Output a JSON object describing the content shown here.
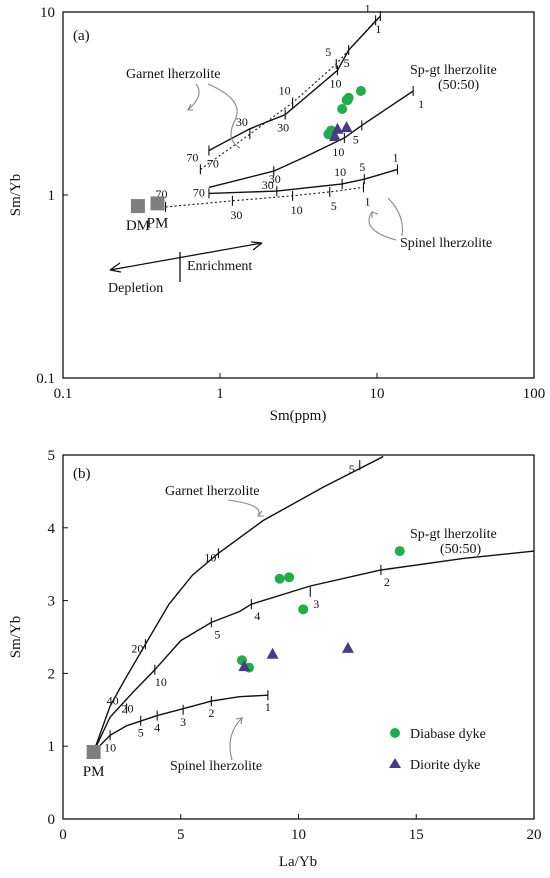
{
  "chart_data": [
    {
      "type": "line",
      "panel_label": "(a)",
      "x_scale": "log",
      "y_scale": "log",
      "xlabel": "Sm(ppm)",
      "ylabel": "Sm/Yb",
      "xlim": [
        0.1,
        100
      ],
      "ylim": [
        0.1,
        10
      ],
      "x_ticks": [
        "0.1",
        "1",
        "10",
        "100"
      ],
      "y_ticks": [
        "0.1",
        "1",
        "10"
      ],
      "curves": [
        {
          "name": "Garnet lherzolite (PM source)",
          "style": "dotted",
          "points": [
            [
              0.75,
              1.38
            ],
            [
              1.55,
              2.15
            ],
            [
              2.9,
              3.2
            ],
            [
              5.5,
              5.2
            ],
            [
              9.8,
              9.0
            ]
          ],
          "ticks": [
            {
              "x": 0.75,
              "y": 1.38,
              "label": "70"
            },
            {
              "x": 1.55,
              "y": 2.15,
              "label": "30"
            },
            {
              "x": 2.9,
              "y": 3.2,
              "label": "10"
            },
            {
              "x": 5.5,
              "y": 5.2,
              "label": "5"
            },
            {
              "x": 9.8,
              "y": 9.0,
              "label": "1"
            }
          ]
        },
        {
          "name": "Garnet lherzolite (DM source)",
          "style": "solid",
          "points": [
            [
              0.85,
              1.75
            ],
            [
              1.55,
              2.3
            ],
            [
              2.6,
              2.75
            ],
            [
              5.6,
              4.8
            ],
            [
              6.6,
              6.2
            ],
            [
              10.5,
              9.5
            ]
          ],
          "ticks": [
            {
              "x": 0.85,
              "y": 1.75,
              "label": "70"
            },
            {
              "x": 2.6,
              "y": 2.75,
              "label": "30"
            },
            {
              "x": 5.6,
              "y": 4.8,
              "label": "10"
            },
            {
              "x": 6.6,
              "y": 6.2,
              "label": "5"
            },
            {
              "x": 10.5,
              "y": 9.5,
              "label": "1"
            }
          ]
        },
        {
          "name": "Sp-gt lherzolite (50:50)",
          "style": "solid",
          "points": [
            [
              0.85,
              1.1
            ],
            [
              2.2,
              1.35
            ],
            [
              3.5,
              1.62
            ],
            [
              6.2,
              2.05
            ],
            [
              8.0,
              2.4
            ],
            [
              17,
              3.7
            ]
          ],
          "ticks": [
            {
              "x": 2.2,
              "y": 1.35,
              "label": "30"
            },
            {
              "x": 6.2,
              "y": 2.05,
              "label": "10"
            },
            {
              "x": 8.0,
              "y": 2.4,
              "label": "5"
            },
            {
              "x": 17,
              "y": 3.7,
              "label": "1"
            }
          ]
        },
        {
          "name": "Spinel lherzolite (DM source)",
          "style": "solid",
          "points": [
            [
              0.85,
              1.02
            ],
            [
              2.3,
              1.05
            ],
            [
              6.0,
              1.15
            ],
            [
              8.3,
              1.22
            ],
            [
              13.5,
              1.38
            ]
          ],
          "ticks": [
            {
              "x": 0.85,
              "y": 1.02,
              "label": "70"
            },
            {
              "x": 2.3,
              "y": 1.05,
              "label": "30"
            },
            {
              "x": 6.0,
              "y": 1.15,
              "label": "10"
            },
            {
              "x": 8.3,
              "y": 1.22,
              "label": "5"
            },
            {
              "x": 13.5,
              "y": 1.38,
              "label": "1"
            }
          ]
        },
        {
          "name": "Spinel lherzolite (PM source)",
          "style": "dotted",
          "points": [
            [
              0.45,
              0.86
            ],
            [
              1.2,
              0.93
            ],
            [
              2.9,
              0.99
            ],
            [
              5.0,
              1.04
            ],
            [
              8.2,
              1.1
            ]
          ],
          "ticks": [
            {
              "x": 0.45,
              "y": 0.86,
              "label": "70"
            },
            {
              "x": 1.2,
              "y": 0.93,
              "label": "30"
            },
            {
              "x": 2.9,
              "y": 0.99,
              "label": "10"
            },
            {
              "x": 5.0,
              "y": 1.04,
              "label": "5"
            },
            {
              "x": 8.2,
              "y": 1.1,
              "label": "1"
            }
          ]
        }
      ],
      "reference_points": [
        {
          "label": "DM",
          "x": 0.3,
          "y": 0.87
        },
        {
          "label": "PM",
          "x": 0.4,
          "y": 0.9
        }
      ],
      "series": [
        {
          "name": "Diabase dyke",
          "marker": "circle",
          "color": "#1fad4e",
          "points": [
            [
              4.9,
              2.15
            ],
            [
              5.1,
              2.25
            ],
            [
              6.0,
              2.95
            ],
            [
              6.4,
              3.3
            ],
            [
              6.5,
              3.3
            ],
            [
              6.6,
              3.4
            ],
            [
              7.9,
              3.7
            ]
          ]
        },
        {
          "name": "Diorite dyke",
          "marker": "triangle",
          "color": "#4b3a85",
          "points": [
            [
              5.4,
              2.1
            ],
            [
              5.6,
              2.3
            ],
            [
              6.4,
              2.35
            ]
          ]
        }
      ],
      "annotations": {
        "garnet": "Garnet lherzolite",
        "spgt_line1": "Sp-gt lherzolite",
        "spgt_line2": "(50:50)",
        "spinel": "Spinel lherzolite",
        "depletion": "Depletion",
        "enrichment": "Enrichment"
      }
    },
    {
      "type": "line",
      "panel_label": "(b)",
      "xlabel": "La/Yb",
      "ylabel": "Sm/Yb",
      "xlim": [
        0,
        20
      ],
      "ylim": [
        0,
        5
      ],
      "x_ticks": [
        "0",
        "5",
        "10",
        "15",
        "20"
      ],
      "y_ticks": [
        "0",
        "1",
        "2",
        "3",
        "4",
        "5"
      ],
      "curves": [
        {
          "name": "Garnet lherzolite",
          "points": [
            [
              1.3,
              0.92
            ],
            [
              2.0,
              1.55
            ],
            [
              2.6,
              1.9
            ],
            [
              3.5,
              2.4
            ],
            [
              4.5,
              2.95
            ],
            [
              5.5,
              3.35
            ],
            [
              6.6,
              3.65
            ],
            [
              8.5,
              4.1
            ],
            [
              11,
              4.55
            ],
            [
              13.6,
              4.98
            ]
          ],
          "ticks": [
            {
              "x": 3.5,
              "y": 2.4,
              "label": "20"
            },
            {
              "x": 6.6,
              "y": 3.65,
              "label": "10"
            },
            {
              "x": 12.6,
              "y": 4.86,
              "label": "5"
            }
          ]
        },
        {
          "name": "Sp-gt lherzolite (50:50)",
          "points": [
            [
              1.3,
              0.92
            ],
            [
              2.0,
              1.4
            ],
            [
              3.0,
              1.75
            ],
            [
              3.9,
              2.05
            ],
            [
              5.0,
              2.45
            ],
            [
              6.3,
              2.7
            ],
            [
              7.5,
              2.85
            ],
            [
              8.0,
              2.95
            ],
            [
              10.5,
              3.2
            ],
            [
              13.5,
              3.42
            ],
            [
              17,
              3.58
            ],
            [
              20,
              3.68
            ]
          ],
          "ticks": [
            {
              "x": 2.7,
              "y": 1.52,
              "label": "40"
            },
            {
              "x": 3.9,
              "y": 2.05,
              "label": "10"
            },
            {
              "x": 6.3,
              "y": 2.7,
              "label": "5"
            },
            {
              "x": 8.0,
              "y": 2.95,
              "label": "4"
            },
            {
              "x": 10.5,
              "y": 3.12,
              "label": "3"
            },
            {
              "x": 13.5,
              "y": 3.42,
              "label": "2"
            }
          ]
        },
        {
          "name": "Spinel lherzolite",
          "points": [
            [
              1.3,
              0.92
            ],
            [
              2.0,
              1.15
            ],
            [
              2.7,
              1.28
            ],
            [
              4.0,
              1.42
            ],
            [
              5.5,
              1.55
            ],
            [
              6.3,
              1.62
            ],
            [
              7.5,
              1.68
            ],
            [
              8.7,
              1.7
            ]
          ],
          "ticks": [
            {
              "x": 2.0,
              "y": 1.15,
              "label": "10"
            },
            {
              "x": 3.3,
              "y": 1.35,
              "label": "5"
            },
            {
              "x": 4.0,
              "y": 1.42,
              "label": "4"
            },
            {
              "x": 5.1,
              "y": 1.5,
              "label": "3"
            },
            {
              "x": 6.3,
              "y": 1.62,
              "label": "2"
            },
            {
              "x": 8.7,
              "y": 1.7,
              "label": "1"
            }
          ],
          "extra_label": {
            "x": 2.4,
            "y": 1.52,
            "label": "20"
          }
        }
      ],
      "reference_points": [
        {
          "label": "PM",
          "x": 1.3,
          "y": 0.92
        }
      ],
      "series": [
        {
          "name": "Diabase dyke",
          "marker": "circle",
          "color": "#1fad4e",
          "points": [
            [
              7.6,
              2.18
            ],
            [
              7.9,
              2.08
            ],
            [
              9.2,
              3.3
            ],
            [
              9.6,
              3.32
            ],
            [
              10.2,
              2.88
            ],
            [
              14.3,
              3.68
            ]
          ]
        },
        {
          "name": "Diorite dyke",
          "marker": "triangle",
          "color": "#4b3a85",
          "points": [
            [
              7.7,
              2.1
            ],
            [
              8.9,
              2.27
            ],
            [
              12.1,
              2.35
            ]
          ]
        }
      ],
      "annotations": {
        "garnet": "Garnet lherzolite",
        "spgt_line1": "Sp-gt lherzolite",
        "spgt_line2": "(50:50)",
        "spinel": "Spinel lherzolite"
      },
      "legend": {
        "placement": "bottom-right",
        "items": [
          "Diabase dyke",
          "Diorite dyke"
        ]
      }
    }
  ]
}
